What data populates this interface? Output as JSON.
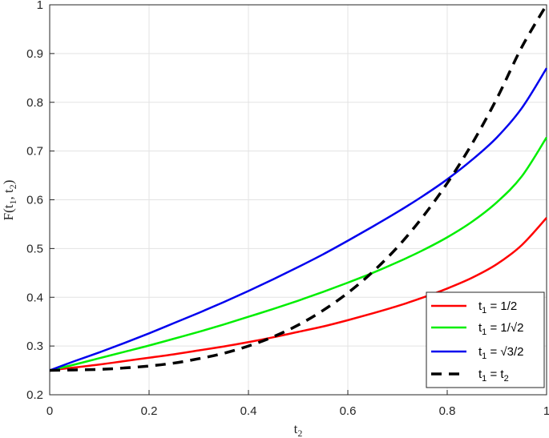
{
  "chart_data": {
    "type": "line",
    "title": "",
    "xlabel": {
      "base": "t",
      "sub": "2"
    },
    "ylabel": {
      "prefix": "F(t",
      "sub1": "1",
      "mid": ", t",
      "sub2": "2",
      "suffix": ")"
    },
    "xlim": [
      0,
      1
    ],
    "ylim": [
      0.2,
      1
    ],
    "x_ticks": [
      "0",
      "0.2",
      "0.4",
      "0.6",
      "0.8",
      "1"
    ],
    "y_ticks": [
      "0.2",
      "0.3",
      "0.4",
      "0.5",
      "0.6",
      "0.7",
      "0.8",
      "0.9",
      "1"
    ],
    "grid": true,
    "legend_position": "bottom-right",
    "x": [
      0,
      0.05,
      0.1,
      0.15,
      0.2,
      0.25,
      0.3,
      0.35,
      0.4,
      0.45,
      0.5,
      0.55,
      0.6,
      0.65,
      0.7,
      0.75,
      0.8,
      0.85,
      0.9,
      0.95,
      1.0
    ],
    "series": [
      {
        "legend": {
          "base": "t",
          "sub": "1",
          "rest": " = 1/2"
        },
        "color": "#ff0000",
        "dash": false,
        "values": [
          0.25,
          0.256,
          0.262,
          0.269,
          0.276,
          0.283,
          0.291,
          0.299,
          0.308,
          0.318,
          0.329,
          0.34,
          0.353,
          0.367,
          0.382,
          0.399,
          0.418,
          0.44,
          0.468,
          0.507,
          0.563
        ]
      },
      {
        "legend": {
          "base": "t",
          "sub": "1",
          "rest": " = 1/√2"
        },
        "color": "#00ee00",
        "dash": false,
        "values": [
          0.25,
          0.262,
          0.275,
          0.288,
          0.301,
          0.315,
          0.329,
          0.344,
          0.36,
          0.376,
          0.393,
          0.411,
          0.43,
          0.45,
          0.472,
          0.496,
          0.523,
          0.555,
          0.595,
          0.648,
          0.728
        ]
      },
      {
        "legend": {
          "base": "t",
          "sub": "1",
          "rest": " = √3/2"
        },
        "color": "#0000ee",
        "dash": false,
        "values": [
          0.25,
          0.269,
          0.287,
          0.306,
          0.326,
          0.347,
          0.368,
          0.39,
          0.413,
          0.437,
          0.462,
          0.488,
          0.516,
          0.545,
          0.575,
          0.607,
          0.642,
          0.682,
          0.728,
          0.788,
          0.87
        ]
      },
      {
        "legend": {
          "base": "t",
          "sub": "1",
          "rest": " = t",
          "sub2": "2"
        },
        "color": "#000000",
        "dash": true,
        "values": [
          0.25,
          0.251,
          0.252,
          0.255,
          0.259,
          0.265,
          0.274,
          0.285,
          0.3,
          0.319,
          0.343,
          0.373,
          0.409,
          0.452,
          0.503,
          0.564,
          0.634,
          0.715,
          0.808,
          0.913,
          1.0
        ]
      }
    ]
  }
}
